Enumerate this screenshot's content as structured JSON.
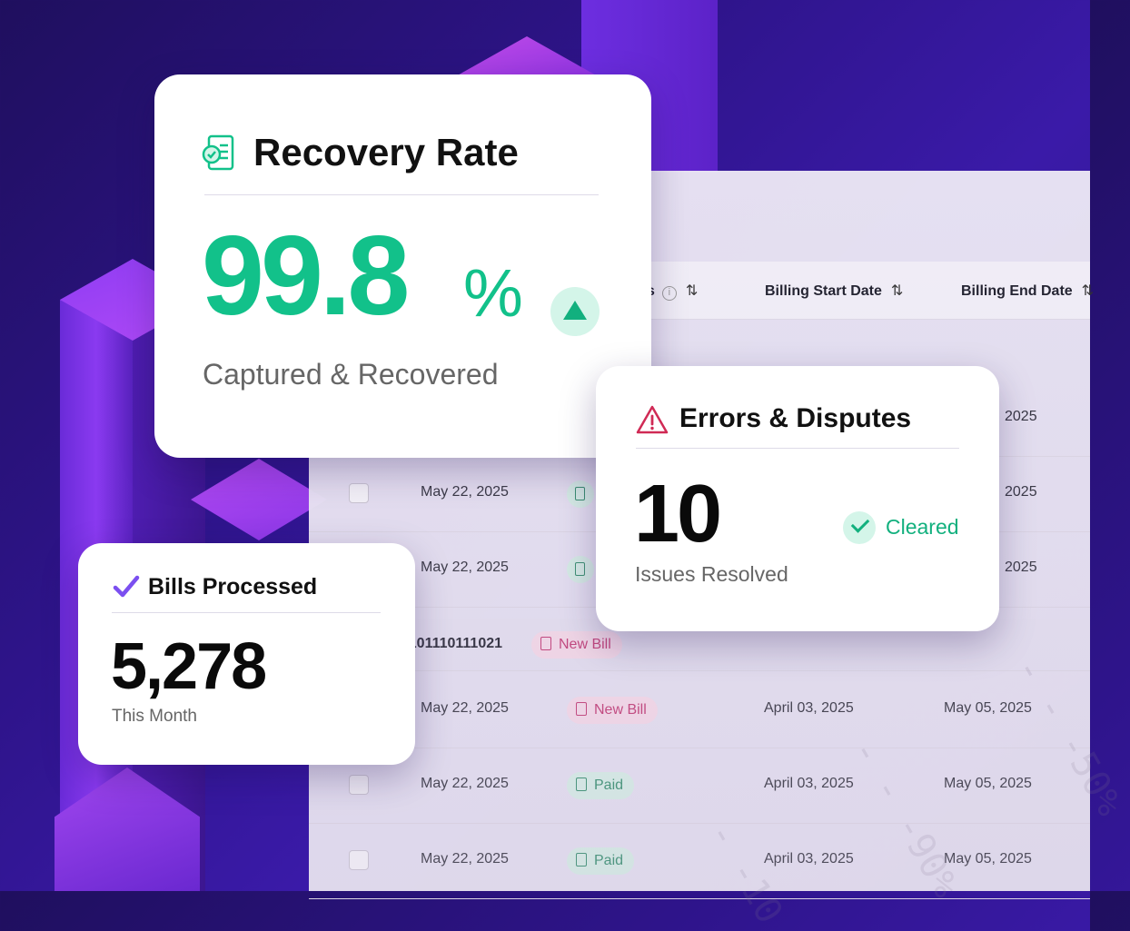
{
  "table": {
    "columns": {
      "status_partial": "s",
      "billing_start": "Billing Start Date",
      "billing_end": "Billing End Date"
    },
    "sort_glyph": "⇅",
    "info_glyph": "i",
    "group_label": ": 101110111021",
    "group_badge": "New Bill",
    "partial_rows": [
      {
        "end_date": "2025"
      },
      {
        "date": "May 22, 2025",
        "end_date": "2025"
      },
      {
        "date": "May 22, 2025",
        "end_date": "2025"
      }
    ],
    "rows": [
      {
        "date": "May 22, 2025",
        "status": "New Bill",
        "start": "April 03, 2025",
        "end": "May 05, 2025"
      },
      {
        "date": "May 22, 2025",
        "status": "Paid",
        "start": "April 03, 2025",
        "end": "May 05, 2025"
      },
      {
        "date": "May 22, 2025",
        "status": "Paid",
        "start": "April 03, 2025",
        "end": "May 05, 2025"
      }
    ],
    "watermarks": [
      "- - -50%",
      "- - -90%",
      "- -10"
    ]
  },
  "recovery": {
    "title": "Recovery Rate",
    "value": "99.8",
    "unit": "%",
    "subtitle": "Captured & Recovered",
    "trend": "up"
  },
  "errors": {
    "title": "Errors & Disputes",
    "value": "10",
    "subtitle": "Issues Resolved",
    "status": "Cleared"
  },
  "bills": {
    "title": "Bills Processed",
    "value": "5,278",
    "subtitle": "This Month"
  },
  "colors": {
    "accent_green": "#12c18a",
    "accent_purple": "#7b4ff0",
    "warning_red": "#d02a55",
    "new_bill_pink": "#c0336f",
    "paid_green": "#2a8a66"
  }
}
